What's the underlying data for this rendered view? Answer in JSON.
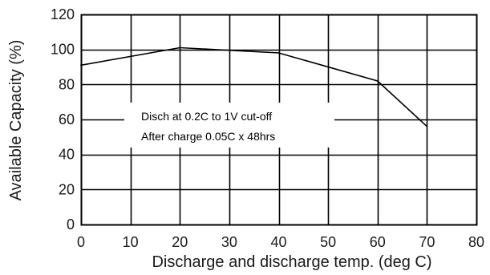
{
  "chart_data": {
    "type": "line",
    "title": "",
    "xlabel": "Discharge and discharge temp. (deg C)",
    "ylabel": "Available Capacity (%)",
    "xlim": [
      0,
      80
    ],
    "ylim": [
      0,
      120
    ],
    "xticks": [
      0,
      10,
      20,
      30,
      40,
      50,
      60,
      70,
      80
    ],
    "yticks": [
      0,
      20,
      40,
      60,
      80,
      100,
      120
    ],
    "grid": true,
    "series": [
      {
        "x": [
          0,
          20,
          40,
          60,
          70
        ],
        "y": [
          91,
          101,
          98,
          82,
          56
        ]
      }
    ],
    "annotations": [
      "Disch at 0.2C to 1V cut-off",
      "After charge 0.05C x 48hrs"
    ],
    "colors": {
      "line": "#000000",
      "grid": "#000000"
    }
  }
}
